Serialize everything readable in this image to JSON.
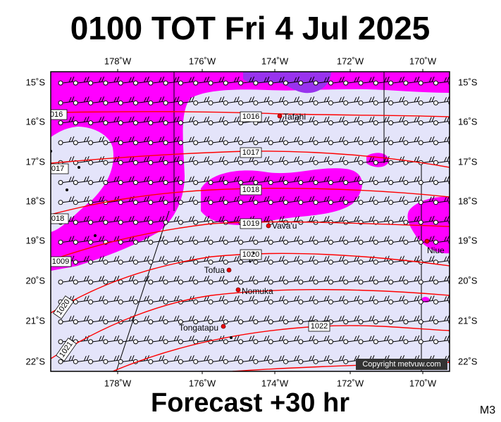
{
  "header": {
    "title": "0100 TOT Fri 4 Jul 2025",
    "subtitle": "Forecast +30 hr",
    "corner_label": "M3"
  },
  "map": {
    "lon_labels": [
      "178˚W",
      "176˚W",
      "174˚W",
      "172˚W",
      "170˚W"
    ],
    "lat_labels": [
      "15˚S",
      "16˚S",
      "17˚S",
      "18˚S",
      "19˚S",
      "20˚S",
      "21˚S",
      "22˚S"
    ],
    "isobar_labels": [
      "1016",
      "016",
      "1017",
      "017",
      "1018",
      "018",
      "1019",
      "1009",
      "1020",
      "1020",
      "1021",
      "1022"
    ],
    "places": [
      "Tafahi",
      "Vava'u",
      "Tofua",
      "Nomuka",
      "Tongatapu",
      "Niue"
    ],
    "copyright": "Copyright metvuw.com"
  }
}
